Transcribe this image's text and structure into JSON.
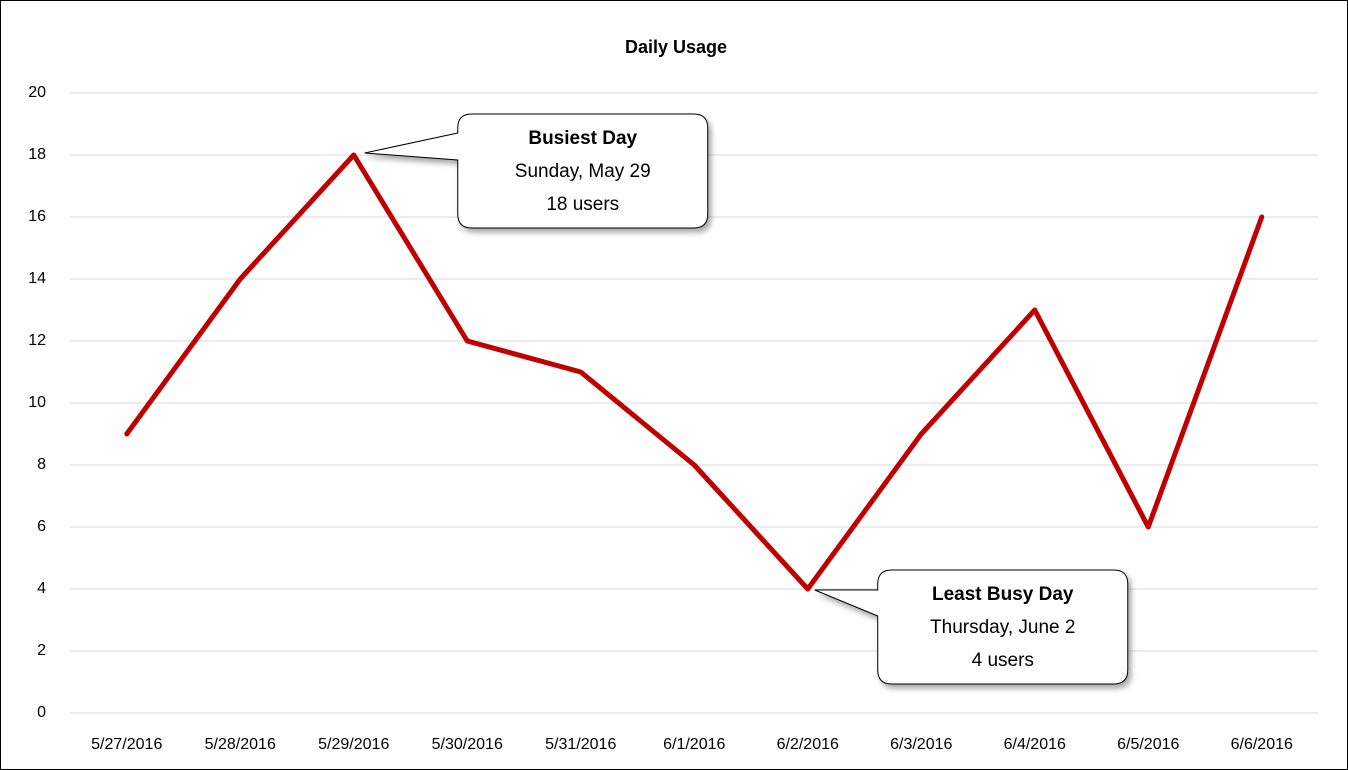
{
  "chart_data": {
    "type": "line",
    "title": "Daily Usage",
    "categories": [
      "5/27/2016",
      "5/28/2016",
      "5/29/2016",
      "5/30/2016",
      "5/31/2016",
      "6/1/2016",
      "6/2/2016",
      "6/3/2016",
      "6/4/2016",
      "6/5/2016",
      "6/6/2016"
    ],
    "series": [
      {
        "color": "#c00000",
        "values": [
          9,
          14,
          18,
          12,
          11,
          8,
          4,
          9,
          13,
          6,
          16
        ]
      }
    ],
    "ylim": [
      0,
      20
    ],
    "yticks": [
      0,
      2,
      4,
      6,
      8,
      10,
      12,
      14,
      16,
      18,
      20
    ],
    "grid": true,
    "annotations": [
      [
        "Busiest Day",
        "Sunday, May 29",
        "18 users"
      ],
      [
        "Least Busy Day",
        "Thursday, June 2",
        "4 users"
      ]
    ]
  }
}
